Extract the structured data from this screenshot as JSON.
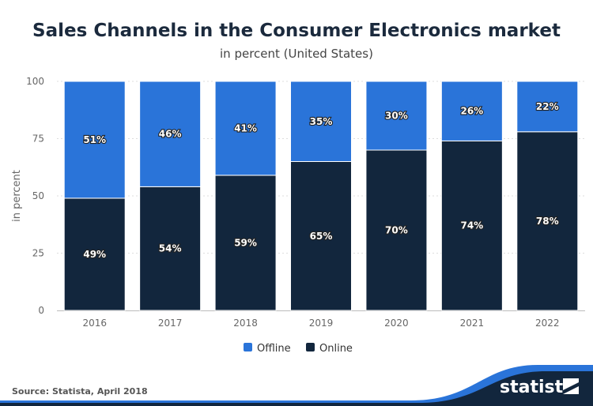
{
  "chart_data": {
    "type": "bar",
    "stacked": true,
    "title": "Sales Channels in the Consumer Electronics market",
    "subtitle": "in percent (United States)",
    "xlabel": "",
    "ylabel": "in percent",
    "ylim": [
      0,
      100
    ],
    "yticks": [
      0,
      25,
      50,
      75,
      100
    ],
    "grid": true,
    "legend_position": "bottom",
    "categories": [
      "2016",
      "2017",
      "2018",
      "2019",
      "2020",
      "2021",
      "2022"
    ],
    "series": [
      {
        "name": "Online",
        "color": "#12263d",
        "values": [
          49,
          54,
          59,
          65,
          70,
          74,
          78
        ]
      },
      {
        "name": "Offline",
        "color": "#2a74d9",
        "values": [
          51,
          46,
          41,
          35,
          30,
          26,
          22
        ]
      }
    ],
    "value_suffix": "%"
  },
  "footer": {
    "source": "Source: Statista, April 2018",
    "logo": "statista"
  }
}
